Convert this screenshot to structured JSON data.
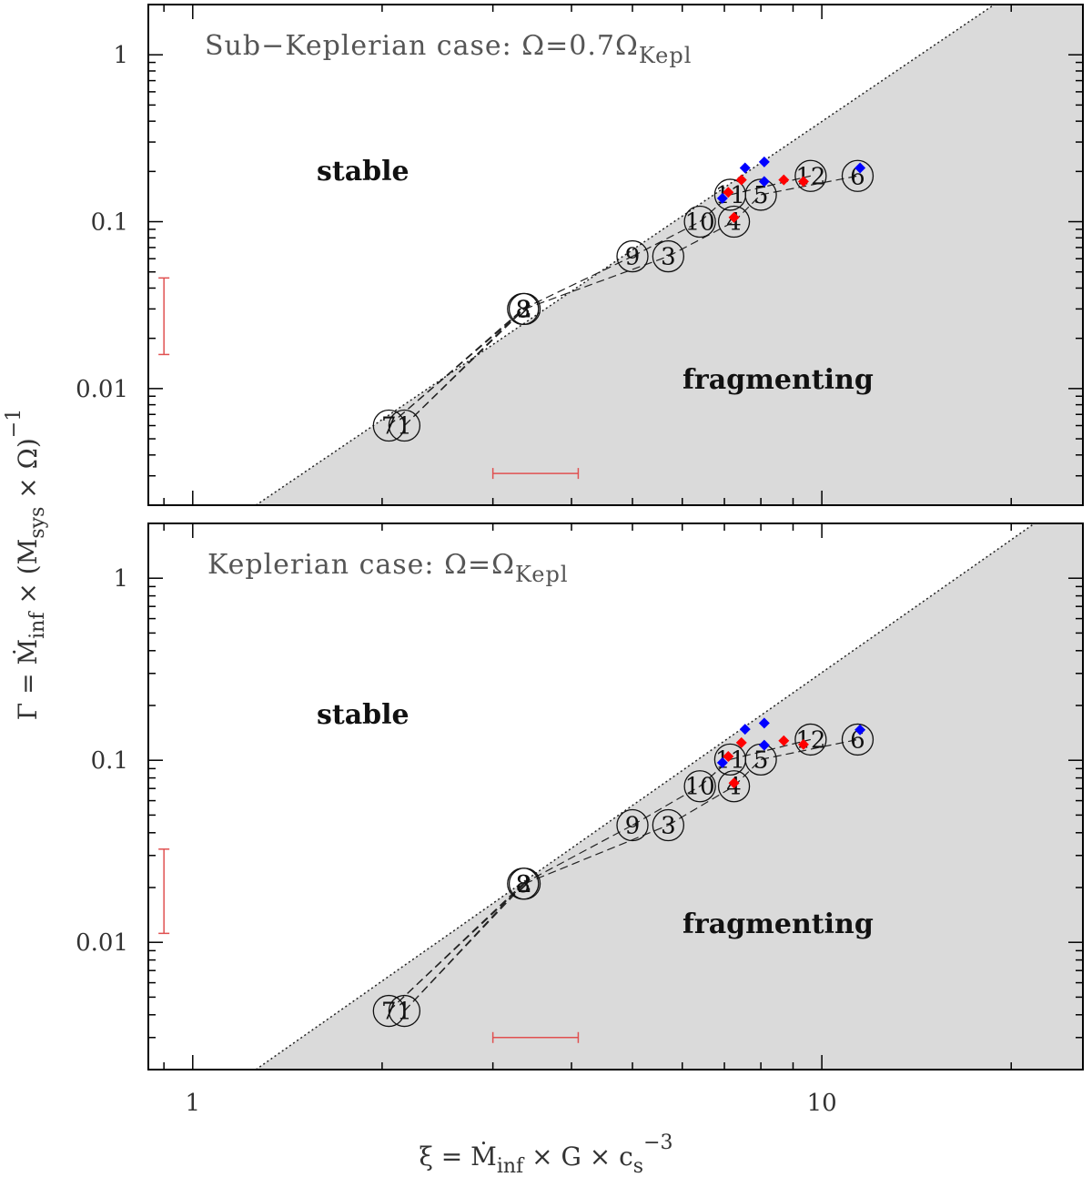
{
  "figure": {
    "xlabel": {
      "main": "ξ  =  Ṁ",
      "sub1": "inf",
      "mid": " × G × c",
      "sub2": "s",
      "sup": "−3"
    },
    "ylabel": {
      "main": "Γ  =  Ṁ",
      "sub1": "inf",
      "mid1": " × (M",
      "sub2": "sys",
      "mid2": " × Ω)",
      "sup": "−1"
    },
    "x_tick_labels": [
      "1",
      "10"
    ],
    "y_tick_labels": [
      "0.01",
      "0.1",
      "1"
    ]
  },
  "chart_data": [
    {
      "type": "scatter",
      "panel": "top",
      "title": {
        "main": "Sub−Keplerian case: Ω=0.7Ω",
        "sub": "Kepl"
      },
      "region_labels": {
        "stable": "stable",
        "fragmenting": "fragmenting"
      },
      "x_scale": "log",
      "y_scale": "log",
      "xlim": [
        0.85,
        26
      ],
      "ylim": [
        0.002,
        2.0
      ],
      "boundary_line": {
        "x": [
          1.26,
          18.8
        ],
        "y": [
          0.002,
          2.0
        ],
        "style": "dotted"
      },
      "shaded_region": "below boundary (fragmenting)",
      "labeled_points": [
        {
          "label": "7",
          "x": 2.05,
          "y": 0.006
        },
        {
          "label": "1",
          "x": 2.17,
          "y": 0.006
        },
        {
          "label": "8",
          "x": 3.35,
          "y": 0.03
        },
        {
          "label": "2",
          "x": 3.37,
          "y": 0.03
        },
        {
          "label": "9",
          "x": 5.0,
          "y": 0.062
        },
        {
          "label": "3",
          "x": 5.7,
          "y": 0.062
        },
        {
          "label": "10",
          "x": 6.4,
          "y": 0.1
        },
        {
          "label": "4",
          "x": 7.25,
          "y": 0.1
        },
        {
          "label": "11",
          "x": 7.15,
          "y": 0.145
        },
        {
          "label": "5",
          "x": 8.0,
          "y": 0.145
        },
        {
          "label": "12",
          "x": 9.6,
          "y": 0.188
        },
        {
          "label": "6",
          "x": 11.4,
          "y": 0.188
        }
      ],
      "dashed_paths": [
        {
          "from": "7",
          "to": "8"
        },
        {
          "from": "7",
          "to": "2"
        },
        {
          "from": "1",
          "to": "8"
        },
        {
          "from": "1",
          "to": "2"
        },
        {
          "from": "8",
          "to": "9"
        },
        {
          "from": "2",
          "to": "3"
        },
        {
          "from": "9",
          "to": "10"
        },
        {
          "from": "3",
          "to": "4"
        },
        {
          "from": "10",
          "to": "11"
        },
        {
          "from": "4",
          "to": "5"
        },
        {
          "from": "11",
          "to": "12"
        },
        {
          "from": "5",
          "to": "6"
        }
      ],
      "red_markers": [
        {
          "x": 7.1,
          "y": 0.15
        },
        {
          "x": 7.45,
          "y": 0.178
        },
        {
          "x": 7.25,
          "y": 0.106
        },
        {
          "x": 8.7,
          "y": 0.178
        },
        {
          "x": 9.35,
          "y": 0.174
        }
      ],
      "blue_markers": [
        {
          "x": 6.95,
          "y": 0.138
        },
        {
          "x": 7.55,
          "y": 0.21
        },
        {
          "x": 8.1,
          "y": 0.228
        },
        {
          "x": 8.1,
          "y": 0.174
        },
        {
          "x": 11.5,
          "y": 0.21
        }
      ],
      "error_bars": {
        "y_bar": {
          "x": 0.9,
          "y": [
            0.016,
            0.046
          ]
        },
        "x_bar": {
          "y": 0.0031,
          "x": [
            3.0,
            4.1
          ]
        }
      },
      "colors": {
        "shade": "#dadada",
        "red": "#ff0000",
        "blue": "#0000ff",
        "error_bar": "#e05050"
      }
    },
    {
      "type": "scatter",
      "panel": "bottom",
      "title": {
        "main": "Keplerian case: Ω=Ω",
        "sub": "Kepl"
      },
      "region_labels": {
        "stable": "stable",
        "fragmenting": "fragmenting"
      },
      "x_scale": "log",
      "y_scale": "log",
      "xlim": [
        0.85,
        26
      ],
      "ylim": [
        0.002,
        2.0
      ],
      "boundary_line": {
        "x": [
          1.26,
          18.8
        ],
        "y": [
          0.002,
          1.4
        ],
        "style": "dotted"
      },
      "shaded_region": "below boundary (fragmenting)",
      "labeled_points": [
        {
          "label": "7",
          "x": 2.05,
          "y": 0.0042
        },
        {
          "label": "1",
          "x": 2.17,
          "y": 0.0042
        },
        {
          "label": "8",
          "x": 3.35,
          "y": 0.021
        },
        {
          "label": "2",
          "x": 3.37,
          "y": 0.021
        },
        {
          "label": "9",
          "x": 5.0,
          "y": 0.044
        },
        {
          "label": "3",
          "x": 5.7,
          "y": 0.044
        },
        {
          "label": "10",
          "x": 6.4,
          "y": 0.072
        },
        {
          "label": "4",
          "x": 7.25,
          "y": 0.072
        },
        {
          "label": "11",
          "x": 7.15,
          "y": 0.101
        },
        {
          "label": "5",
          "x": 8.0,
          "y": 0.101
        },
        {
          "label": "12",
          "x": 9.6,
          "y": 0.13
        },
        {
          "label": "6",
          "x": 11.4,
          "y": 0.13
        }
      ],
      "dashed_paths": [
        {
          "from": "7",
          "to": "8"
        },
        {
          "from": "7",
          "to": "2"
        },
        {
          "from": "1",
          "to": "8"
        },
        {
          "from": "1",
          "to": "2"
        },
        {
          "from": "8",
          "to": "9"
        },
        {
          "from": "2",
          "to": "3"
        },
        {
          "from": "9",
          "to": "10"
        },
        {
          "from": "3",
          "to": "4"
        },
        {
          "from": "10",
          "to": "11"
        },
        {
          "from": "4",
          "to": "5"
        },
        {
          "from": "11",
          "to": "12"
        },
        {
          "from": "5",
          "to": "6"
        }
      ],
      "red_markers": [
        {
          "x": 7.1,
          "y": 0.105
        },
        {
          "x": 7.45,
          "y": 0.125
        },
        {
          "x": 7.25,
          "y": 0.075
        },
        {
          "x": 8.7,
          "y": 0.128
        },
        {
          "x": 9.35,
          "y": 0.122
        }
      ],
      "blue_markers": [
        {
          "x": 6.95,
          "y": 0.097
        },
        {
          "x": 7.55,
          "y": 0.148
        },
        {
          "x": 8.1,
          "y": 0.16
        },
        {
          "x": 8.1,
          "y": 0.121
        },
        {
          "x": 11.5,
          "y": 0.147
        }
      ],
      "error_bars": {
        "y_bar": {
          "x": 0.9,
          "y": [
            0.0112,
            0.0325
          ]
        },
        "x_bar": {
          "y": 0.003,
          "x": [
            3.0,
            4.1
          ]
        }
      },
      "colors": {
        "shade": "#dadada",
        "red": "#ff0000",
        "blue": "#0000ff",
        "error_bar": "#e05050"
      }
    }
  ]
}
